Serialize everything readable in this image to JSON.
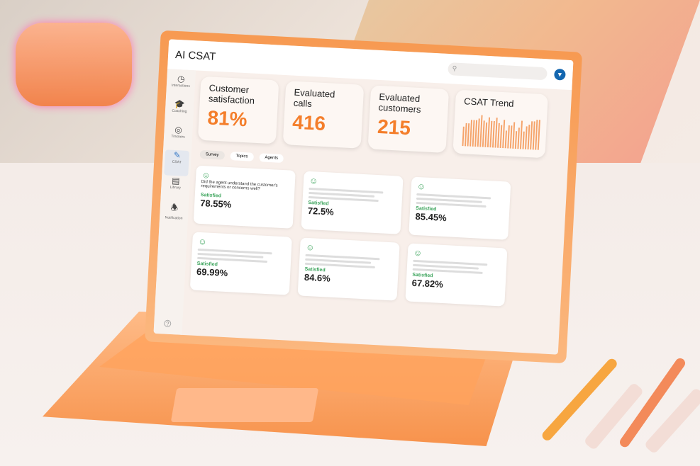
{
  "app": {
    "title": "AI CSAT",
    "search_placeholder": "",
    "user_icon": "filter-icon"
  },
  "sidebar": {
    "items": [
      {
        "label": "Interactions",
        "icon": "clock-icon"
      },
      {
        "label": "Coaching",
        "icon": "graduation-cap-icon"
      },
      {
        "label": "Trackers",
        "icon": "target-icon"
      },
      {
        "label": "CSAT",
        "icon": "csat-icon",
        "active": true
      },
      {
        "label": "Library",
        "icon": "library-icon"
      },
      {
        "label": "Notification",
        "icon": "bell-icon"
      }
    ]
  },
  "kpis": [
    {
      "title": "Customer satisfaction",
      "value": "81%"
    },
    {
      "title": "Evaluated calls",
      "value": "416"
    },
    {
      "title": "Evaluated customers",
      "value": "215"
    }
  ],
  "chart_data": {
    "type": "bar",
    "title": "CSAT Trend",
    "values": [
      55,
      65,
      65,
      75,
      75,
      75,
      80,
      90,
      75,
      70,
      85,
      75,
      75,
      85,
      70,
      65,
      80,
      50,
      65,
      65,
      75,
      50,
      60,
      80,
      50,
      65,
      70,
      80,
      80,
      85,
      85
    ],
    "ylim": [
      0,
      100
    ],
    "grid": false
  },
  "tabs": [
    {
      "label": "Survey",
      "selected": true
    },
    {
      "label": "Topics"
    },
    {
      "label": "Agents"
    }
  ],
  "cards": [
    {
      "question": "Did the agent understand the customer's requirements or concerns well?",
      "status": "Satisfied",
      "value": "78.55%"
    },
    {
      "status": "Satisfied",
      "value": "72.5%"
    },
    {
      "status": "Satisfied",
      "value": "85.45%"
    },
    {
      "status": "Satisfied",
      "value": "69.99%"
    },
    {
      "status": "Satisfied",
      "value": "84.6%"
    },
    {
      "status": "Satisfied",
      "value": "67.82%"
    }
  ],
  "colors": {
    "accent": "#f47e2b",
    "satisfied": "#3aa35a",
    "user": "#1467b0"
  }
}
